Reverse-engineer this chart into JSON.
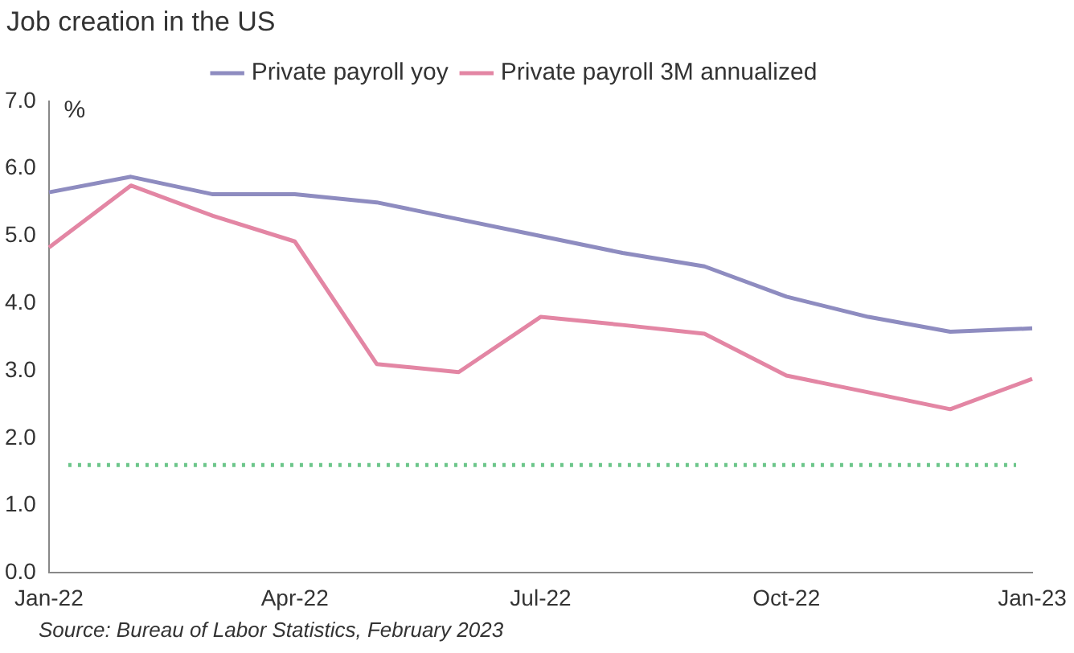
{
  "chart_data": {
    "type": "line",
    "title": "Job creation in the US",
    "ylabel": "%",
    "categories": [
      "Jan-22",
      null,
      null,
      "Apr-22",
      null,
      null,
      "Jul-22",
      null,
      null,
      "Oct-22",
      null,
      null,
      "Jan-23"
    ],
    "series": [
      {
        "name": "Private payroll yoy",
        "color": "#8e8cc0",
        "values": [
          5.65,
          5.88,
          5.62,
          5.62,
          5.5,
          5.25,
          5.0,
          4.75,
          4.55,
          4.1,
          3.8,
          3.58,
          3.63
        ]
      },
      {
        "name": "Private payroll 3M annualized",
        "color": "#e386a4",
        "values": [
          4.83,
          5.75,
          5.3,
          4.92,
          3.1,
          2.98,
          3.8,
          3.68,
          3.55,
          2.93,
          2.68,
          2.43,
          2.88
        ]
      }
    ],
    "ref_lines": [
      {
        "axis": "y",
        "value": 1.6,
        "color": "#6cc68a",
        "line_style": "dotted"
      }
    ],
    "ylim": [
      0,
      7
    ],
    "yticks": [
      {
        "value": 0,
        "label": "0.0"
      },
      {
        "value": 1,
        "label": "1.0"
      },
      {
        "value": 2,
        "label": "2.0"
      },
      {
        "value": 3,
        "label": "3.0"
      },
      {
        "value": 4,
        "label": "4.0"
      },
      {
        "value": 5,
        "label": "5.0"
      },
      {
        "value": 6,
        "label": "6.0"
      },
      {
        "value": 7,
        "label": "7.0"
      }
    ],
    "grid": false,
    "legend": "top",
    "marker": "none",
    "line_style": "solid",
    "annotations": [
      "Source: Bureau of Labor Statistics, February 2023"
    ]
  }
}
